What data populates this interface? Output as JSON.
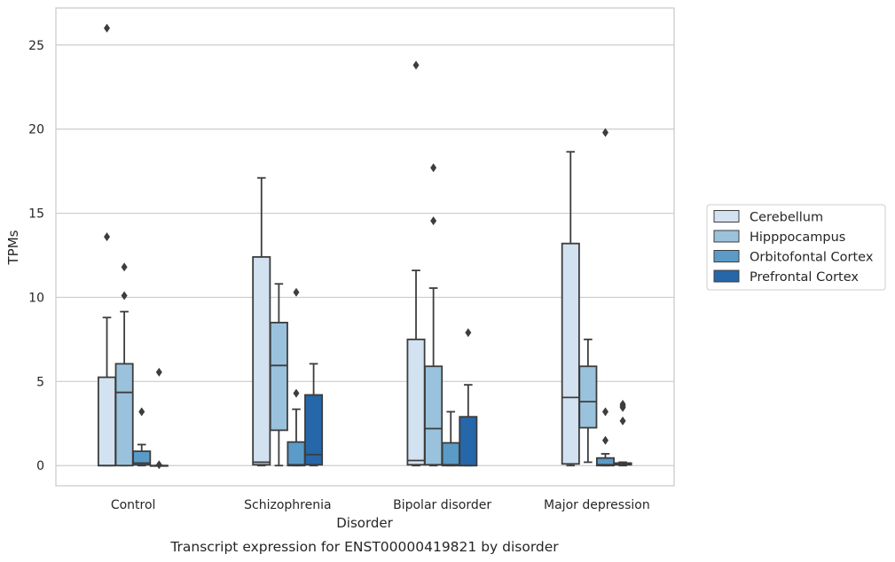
{
  "chart_data": {
    "type": "box",
    "xlabel": "Disorder",
    "ylabel": "TPMs",
    "caption": "Transcript expression for ENST00000419821 by disorder",
    "ylim": [
      -1.2,
      27.2
    ],
    "yticks": [
      0,
      5,
      10,
      15,
      20,
      25
    ],
    "grid": "horizontal",
    "legend_position": "right",
    "categories": [
      "Control",
      "Schizophrenia",
      "Bipolar disorder",
      "Major depression"
    ],
    "series": [
      {
        "name": "Cerebellum",
        "color": "#d3e2f1",
        "boxes": [
          {
            "whislo": 0,
            "q1": 0,
            "med": 0,
            "q3": 5.25,
            "whishi": 8.8,
            "fliers": [
              13.6,
              26.0
            ]
          },
          {
            "whislo": 0,
            "q1": 0.05,
            "med": 0.2,
            "q3": 12.4,
            "whishi": 17.1,
            "fliers": []
          },
          {
            "whislo": 0,
            "q1": 0.05,
            "med": 0.3,
            "q3": 7.5,
            "whishi": 11.6,
            "fliers": [
              23.8
            ]
          },
          {
            "whislo": 0,
            "q1": 0.1,
            "med": 4.05,
            "q3": 13.2,
            "whishi": 18.65,
            "fliers": []
          }
        ]
      },
      {
        "name": "Hipppocampus",
        "color": "#9ac2dc",
        "boxes": [
          {
            "whislo": 0,
            "q1": 0,
            "med": 4.35,
            "q3": 6.05,
            "whishi": 9.15,
            "fliers": [
              10.1,
              11.8
            ]
          },
          {
            "whislo": 0,
            "q1": 2.1,
            "med": 5.95,
            "q3": 8.5,
            "whishi": 10.8,
            "fliers": []
          },
          {
            "whislo": 0,
            "q1": 0.05,
            "med": 2.2,
            "q3": 5.9,
            "whishi": 10.55,
            "fliers": [
              14.55,
              17.7
            ]
          },
          {
            "whislo": 0.2,
            "q1": 2.25,
            "med": 3.8,
            "q3": 5.9,
            "whishi": 7.5,
            "fliers": []
          }
        ]
      },
      {
        "name": "Orbitofontal Cortex",
        "color": "#5a9bc8",
        "boxes": [
          {
            "whislo": 0,
            "q1": 0.05,
            "med": 0.15,
            "q3": 0.85,
            "whishi": 1.25,
            "fliers": [
              3.2
            ]
          },
          {
            "whislo": 0,
            "q1": 0,
            "med": 0.05,
            "q3": 1.4,
            "whishi": 3.35,
            "fliers": [
              4.3,
              10.3
            ]
          },
          {
            "whislo": 0,
            "q1": 0,
            "med": 0.05,
            "q3": 1.35,
            "whishi": 3.2,
            "fliers": []
          },
          {
            "whislo": 0,
            "q1": 0,
            "med": 0.05,
            "q3": 0.45,
            "whishi": 0.7,
            "fliers": [
              1.5,
              3.2,
              19.8
            ]
          }
        ]
      },
      {
        "name": "Prefrontal Cortex",
        "color": "#2567a8",
        "boxes": [
          {
            "whislo": 0,
            "q1": 0,
            "med": 0,
            "q3": 0,
            "whishi": 0,
            "fliers": [
              0.05,
              5.55
            ]
          },
          {
            "whislo": 0,
            "q1": 0.05,
            "med": 0.65,
            "q3": 4.2,
            "whishi": 6.05,
            "fliers": []
          },
          {
            "whislo": 0,
            "q1": 0,
            "med": 0,
            "q3": 2.9,
            "whishi": 4.8,
            "fliers": [
              7.9
            ]
          },
          {
            "whislo": 0,
            "q1": 0.05,
            "med": 0.1,
            "q3": 0.15,
            "whishi": 0.2,
            "fliers": [
              2.65,
              3.45,
              3.55,
              3.65
            ]
          }
        ]
      }
    ]
  }
}
